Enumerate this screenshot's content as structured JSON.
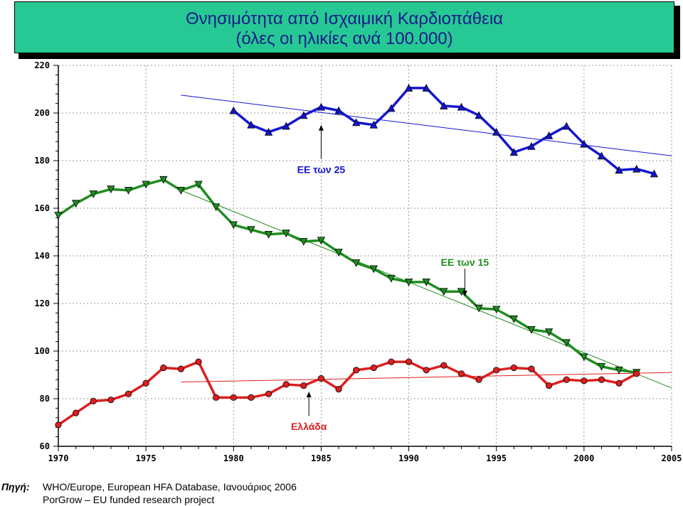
{
  "title": {
    "line1": "Θνησιμότητα από Ισχαιμική Καρδιοπάθεια",
    "line2": "(όλες οι ηλικίες ανά 100.000)"
  },
  "source": {
    "label": "Πηγή:",
    "line1": "WHO/Europe, European HFA Database, Ιανουάριος 2006",
    "line2": "PorGrow – EU funded research project"
  },
  "chart_data": {
    "type": "line",
    "title": "Θνησιμότητα από Ισχαιμική Καρδιοπάθεια (όλες οι ηλικίες ανά 100.000)",
    "xlim": [
      1970,
      2005
    ],
    "ylim": [
      60,
      220
    ],
    "x_ticks": [
      1970,
      1975,
      1980,
      1985,
      1990,
      1995,
      2000,
      2005
    ],
    "y_ticks": [
      60,
      80,
      100,
      120,
      140,
      160,
      180,
      200,
      220
    ],
    "grid": true,
    "series": [
      {
        "name": "ΕΕ των 25",
        "color": "#1414d2",
        "marker": "triangle-up",
        "x": [
          1980,
          1981,
          1982,
          1983,
          1984,
          1985,
          1986,
          1987,
          1988,
          1989,
          1990,
          1991,
          1992,
          1993,
          1994,
          1995,
          1996,
          1997,
          1998,
          1999,
          2000,
          2001,
          2002,
          2003,
          2004
        ],
        "y": [
          201,
          195,
          192,
          194.5,
          199,
          202.5,
          201,
          196,
          195,
          202,
          210.5,
          210.5,
          203,
          202.5,
          199,
          192,
          183.5,
          186,
          190.5,
          194.5,
          187,
          182,
          176,
          176.5,
          174.5
        ]
      },
      {
        "name": "ΕΕ των 15",
        "color": "#1f8c1f",
        "marker": "triangle-down",
        "x": [
          1970,
          1971,
          1972,
          1973,
          1974,
          1975,
          1976,
          1977,
          1978,
          1979,
          1980,
          1981,
          1982,
          1983,
          1984,
          1985,
          1986,
          1987,
          1988,
          1989,
          1990,
          1991,
          1992,
          1993,
          1994,
          1995,
          1996,
          1997,
          1998,
          1999,
          2000,
          2001,
          2002,
          2003
        ],
        "y": [
          157,
          162,
          166,
          168,
          167.5,
          170,
          172,
          167.5,
          170,
          160.5,
          153,
          151,
          149,
          149.5,
          146,
          146.5,
          141.5,
          137,
          134.5,
          130.5,
          129,
          129,
          125,
          125,
          118,
          117.5,
          113.5,
          109,
          108,
          103.5,
          97.5,
          93.5,
          92,
          91
        ]
      },
      {
        "name": "Ελλάδα",
        "color": "#dd1f1f",
        "marker": "circle",
        "x": [
          1970,
          1971,
          1972,
          1973,
          1974,
          1975,
          1976,
          1977,
          1978,
          1979,
          1980,
          1981,
          1982,
          1983,
          1984,
          1985,
          1986,
          1987,
          1988,
          1989,
          1990,
          1991,
          1992,
          1993,
          1994,
          1995,
          1996,
          1997,
          1998,
          1999,
          2000,
          2001,
          2002,
          2003
        ],
        "y": [
          69,
          74,
          79,
          79.5,
          82,
          86.5,
          93,
          92.5,
          95.5,
          80.5,
          80.5,
          80.5,
          82,
          86,
          85.5,
          88.5,
          84,
          92,
          93,
          95.5,
          95.5,
          92,
          94,
          90.5,
          88,
          92,
          93,
          92.5,
          85.5,
          88,
          87.5,
          88,
          86.5,
          90.5
        ]
      }
    ],
    "trendlines": [
      {
        "series": "ΕΕ των 25",
        "color": "#1414d2",
        "x": [
          1977,
          2005
        ],
        "y": [
          207.5,
          182
        ]
      },
      {
        "series": "ΕΕ των 15",
        "color": "#1f8c1f",
        "x": [
          1977,
          2005
        ],
        "y": [
          167.5,
          84.5
        ]
      },
      {
        "series": "Ελλάδα",
        "color": "#dd1f1f",
        "x": [
          1977,
          2005
        ],
        "y": [
          87,
          91
        ]
      }
    ],
    "annotations": [
      {
        "text": "ΕΕ των  25",
        "color": "#1414d2",
        "arrow_x": 1985,
        "arrow_y": 195,
        "label_y": 176
      },
      {
        "text": "ΕΕ των 15",
        "color": "#1f8c1f",
        "arrow_x": 1993.2,
        "arrow_y": 123,
        "label_y": 137
      },
      {
        "text": "Ελλάδα",
        "color": "#dd1f1f",
        "arrow_x": 1984.3,
        "arrow_y": 83,
        "label_y": 68
      }
    ]
  }
}
